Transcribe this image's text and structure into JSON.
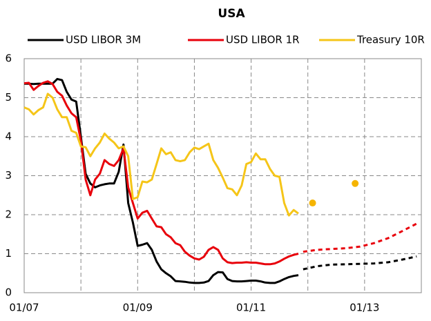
{
  "chart_data": {
    "type": "line",
    "title": "USA",
    "x": [
      "2007-01",
      "2007-02",
      "2007-03",
      "2007-04",
      "2007-05",
      "2007-06",
      "2007-07",
      "2007-08",
      "2007-09",
      "2007-10",
      "2007-11",
      "2007-12",
      "2008-01",
      "2008-02",
      "2008-03",
      "2008-04",
      "2008-05",
      "2008-06",
      "2008-07",
      "2008-08",
      "2008-09",
      "2008-10",
      "2008-11",
      "2008-12",
      "2009-01",
      "2009-02",
      "2009-03",
      "2009-04",
      "2009-05",
      "2009-06",
      "2009-07",
      "2009-08",
      "2009-09",
      "2009-10",
      "2009-11",
      "2009-12",
      "2010-01",
      "2010-02",
      "2010-03",
      "2010-04",
      "2010-05",
      "2010-06",
      "2010-07",
      "2010-08",
      "2010-09",
      "2010-10",
      "2010-11",
      "2010-12",
      "2011-01",
      "2011-02",
      "2011-03",
      "2011-04",
      "2011-05",
      "2011-06",
      "2011-07",
      "2011-08",
      "2011-09",
      "2011-10",
      "2011-11"
    ],
    "series": [
      {
        "name": "USD LIBOR 3M",
        "color": "#000000",
        "values": [
          5.36,
          5.36,
          5.35,
          5.36,
          5.36,
          5.36,
          5.36,
          5.48,
          5.45,
          5.15,
          4.95,
          4.9,
          4.0,
          3.05,
          2.8,
          2.7,
          2.75,
          2.78,
          2.8,
          2.8,
          3.1,
          3.8,
          2.3,
          1.8,
          1.2,
          1.23,
          1.27,
          1.1,
          0.8,
          0.6,
          0.5,
          0.42,
          0.3,
          0.29,
          0.28,
          0.26,
          0.25,
          0.25,
          0.26,
          0.3,
          0.45,
          0.53,
          0.52,
          0.35,
          0.3,
          0.29,
          0.29,
          0.3,
          0.31,
          0.31,
          0.29,
          0.26,
          0.25,
          0.25,
          0.29,
          0.35,
          0.4,
          0.43,
          0.45
        ]
      },
      {
        "name": "USD LIBOR 1R",
        "color": "#e8000b",
        "values": [
          5.37,
          5.38,
          5.2,
          5.3,
          5.38,
          5.42,
          5.35,
          5.15,
          5.05,
          4.8,
          4.6,
          4.5,
          3.9,
          2.9,
          2.5,
          2.9,
          3.05,
          3.4,
          3.3,
          3.25,
          3.4,
          3.7,
          2.7,
          2.3,
          1.9,
          2.05,
          2.1,
          1.9,
          1.7,
          1.68,
          1.5,
          1.42,
          1.27,
          1.22,
          1.05,
          0.95,
          0.88,
          0.85,
          0.92,
          1.1,
          1.17,
          1.1,
          0.88,
          0.78,
          0.76,
          0.77,
          0.77,
          0.78,
          0.77,
          0.77,
          0.75,
          0.73,
          0.73,
          0.75,
          0.8,
          0.87,
          0.93,
          0.97,
          1.0
        ]
      },
      {
        "name": "Treasury 10R",
        "color": "#f5c518",
        "values": [
          4.75,
          4.7,
          4.57,
          4.68,
          4.75,
          5.1,
          5.0,
          4.7,
          4.5,
          4.5,
          4.15,
          4.1,
          3.75,
          3.73,
          3.5,
          3.7,
          3.85,
          4.08,
          3.95,
          3.85,
          3.7,
          3.75,
          3.5,
          2.4,
          2.45,
          2.85,
          2.83,
          2.9,
          3.3,
          3.7,
          3.55,
          3.6,
          3.4,
          3.37,
          3.4,
          3.6,
          3.72,
          3.68,
          3.75,
          3.82,
          3.4,
          3.2,
          2.95,
          2.68,
          2.65,
          2.5,
          2.75,
          3.3,
          3.35,
          3.57,
          3.42,
          3.42,
          3.17,
          3.0,
          2.97,
          2.3,
          1.98,
          2.12,
          2.03
        ]
      }
    ],
    "forecast": {
      "x": [
        "2011-12",
        "2012-03",
        "2012-06",
        "2012-09",
        "2012-12",
        "2013-03",
        "2013-06",
        "2013-09",
        "2013-12"
      ],
      "series": [
        {
          "color": "#000000",
          "values": [
            0.6,
            0.68,
            0.72,
            0.73,
            0.74,
            0.75,
            0.78,
            0.85,
            0.93
          ]
        },
        {
          "color": "#e8000b",
          "values": [
            1.05,
            1.1,
            1.12,
            1.14,
            1.18,
            1.27,
            1.4,
            1.58,
            1.77
          ]
        }
      ],
      "points": {
        "color": "#f5b400",
        "x": [
          "2012-02",
          "2012-11"
        ],
        "values": [
          2.3,
          2.8
        ]
      }
    },
    "xlim": [
      "2007-01",
      "2014-01"
    ],
    "xticks": [
      {
        "value": "2007-01",
        "label": "01/07"
      },
      {
        "value": "2009-01",
        "label": "01/09"
      },
      {
        "value": "2011-01",
        "label": "01/11"
      },
      {
        "value": "2013-01",
        "label": "01/13"
      }
    ],
    "minor_xticks": [
      "2008-01",
      "2010-01",
      "2012-01"
    ],
    "ylim": [
      0,
      6
    ],
    "yticks": [
      0,
      1,
      2,
      3,
      4,
      5,
      6
    ],
    "grid": true
  }
}
